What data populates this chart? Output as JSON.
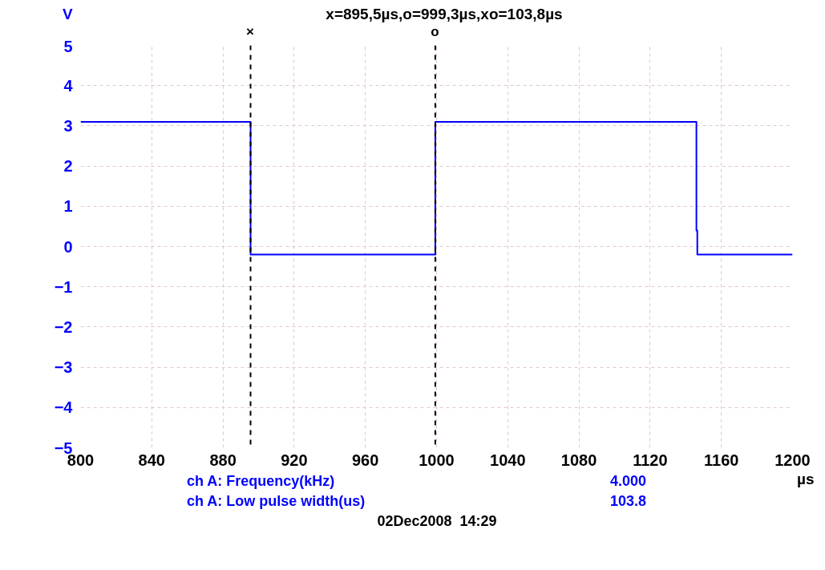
{
  "chart_data": {
    "type": "line",
    "title": "x=895,5µs,o=999,3µs,xo=103,8µs",
    "xlabel": "µs",
    "ylabel": "V",
    "x": [
      800,
      895.5,
      895.5,
      999.3,
      999.3,
      1146,
      1146,
      1146.5,
      1146.5,
      1200
    ],
    "series": [
      {
        "color": "#0000ff",
        "values": [
          3.1,
          3.1,
          -0.2,
          -0.2,
          3.1,
          3.1,
          0.4,
          0.4,
          -0.2,
          -0.2
        ]
      }
    ],
    "xlim": [
      800,
      1200
    ],
    "xticks": [
      800,
      840,
      880,
      920,
      960,
      1000,
      1040,
      1080,
      1120,
      1160,
      1200
    ],
    "ylim": [
      -5,
      5
    ],
    "yticks": [
      -5,
      -4,
      -3,
      -2,
      -1,
      0,
      1,
      2,
      3,
      4,
      5
    ],
    "grid": true,
    "line_style": "solid",
    "marker": "none",
    "ref_lines": [
      {
        "axis": "x",
        "value": 895.5,
        "label": "×",
        "color": "#000000",
        "line_style": "dashed"
      },
      {
        "axis": "x",
        "value": 999.3,
        "label": "o",
        "color": "#000000",
        "line_style": "dashed"
      }
    ],
    "annotations": [
      "ch A: Frequency(kHz)",
      "4.000",
      "ch A: Low pulse width(us)",
      "103.8",
      "02Dec2008  14:29"
    ]
  }
}
